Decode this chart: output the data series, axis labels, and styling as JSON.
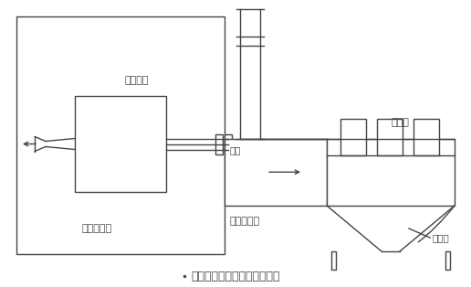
{
  "bg_color": "#ffffff",
  "line_color": "#444444",
  "title": "自洁式空气过滤器厂房内吸气",
  "label_compressor_room": "空压机厂房",
  "label_compressor_unit": "空压机组",
  "label_filter": "过滤器",
  "label_window": "窗户",
  "label_duct": "新增吸风道",
  "label_fabric": "无纺布",
  "fig_width": 5.16,
  "fig_height": 3.14,
  "dpi": 100
}
